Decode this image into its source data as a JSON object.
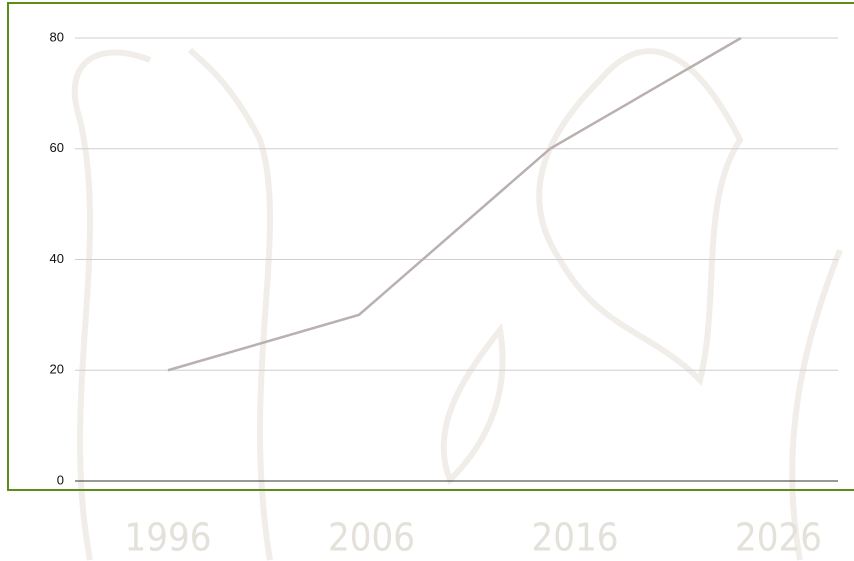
{
  "chart_data": {
    "type": "line",
    "categories": [
      "1996",
      "2006",
      "2016",
      "2026"
    ],
    "series": [
      {
        "color": "#bbb0b0",
        "values": [
          20,
          30,
          60,
          80
        ]
      }
    ],
    "ylim": [
      0,
      80
    ],
    "yticks": [
      0,
      20,
      40,
      60,
      80
    ],
    "grid": true
  }
}
